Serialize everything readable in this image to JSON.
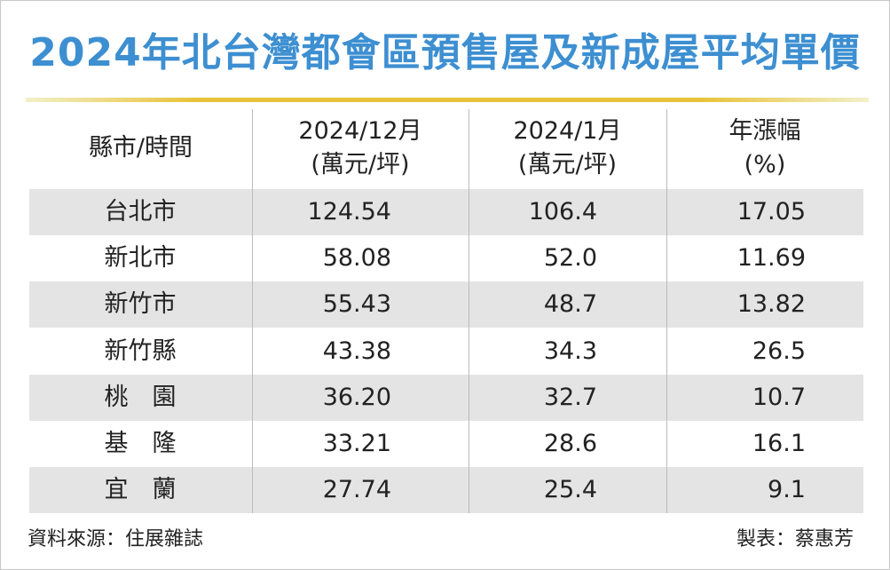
{
  "title": "2024年北台灣都會區預售屋及新成屋平均單價",
  "table": {
    "headers": [
      [
        "縣市/時間"
      ],
      [
        "2024/12月",
        "(萬元/坪)"
      ],
      [
        "2024/1月",
        "(萬元/坪)"
      ],
      [
        "年漲幅",
        "(%)"
      ]
    ],
    "rows": [
      [
        "台北市",
        "124.54",
        "106.4",
        "17.05"
      ],
      [
        "新北市",
        "58.08",
        "52.0",
        "11.69"
      ],
      [
        "新竹市",
        "55.43",
        "48.7",
        "13.82"
      ],
      [
        "新竹縣",
        "43.38",
        "34.3",
        "26.5"
      ],
      [
        "桃　園",
        "36.20",
        "32.7",
        "10.7"
      ],
      [
        "基　隆",
        "33.21",
        "28.6",
        "16.1"
      ],
      [
        "宜　蘭",
        "27.74",
        "25.4",
        "9.1"
      ]
    ]
  },
  "footer": {
    "source": "資料來源：住展雜誌",
    "author": "製表：蔡惠芳"
  }
}
